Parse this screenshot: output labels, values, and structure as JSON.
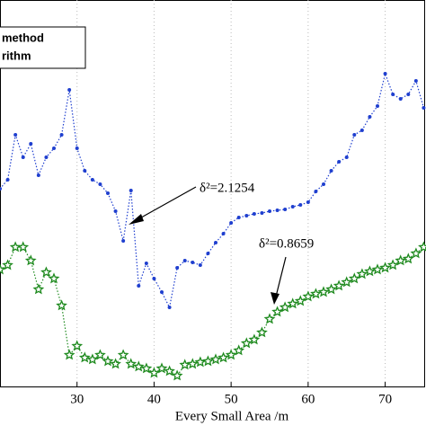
{
  "chart_data": {
    "type": "line",
    "x_label": "Every Small Area /m",
    "x": [
      20,
      21,
      22,
      23,
      24,
      25,
      26,
      27,
      28,
      29,
      30,
      31,
      32,
      33,
      34,
      35,
      36,
      37,
      38,
      39,
      40,
      41,
      42,
      43,
      44,
      45,
      46,
      47,
      48,
      49,
      50,
      51,
      52,
      53,
      54,
      55,
      56,
      57,
      58,
      59,
      60,
      61,
      62,
      63,
      64,
      65,
      66,
      67,
      68,
      69,
      70,
      71,
      72,
      73,
      74,
      75
    ],
    "series": [
      {
        "name": "method",
        "color": "#1f3fcf",
        "marker": "dot",
        "values": [
          22.0,
          23.0,
          28.0,
          25.5,
          27.0,
          23.5,
          25.5,
          26.5,
          28.0,
          33.0,
          26.5,
          24.0,
          23.0,
          22.5,
          21.5,
          19.5,
          16.2,
          21.8,
          11.2,
          13.7,
          12.0,
          10.5,
          8.8,
          13.2,
          14.0,
          13.8,
          13.5,
          14.8,
          16.0,
          17.0,
          18.2,
          18.8,
          19.0,
          19.2,
          19.3,
          19.5,
          19.6,
          19.7,
          20.0,
          20.2,
          20.5,
          21.7,
          22.5,
          24.0,
          25.0,
          25.5,
          28.0,
          28.5,
          30.0,
          31.2,
          34.8,
          32.5,
          32.0,
          32.5,
          34.0,
          31.0
        ]
      },
      {
        "name": "rithm",
        "color": "#1e8a1e",
        "marker": "star",
        "values": [
          13.0,
          13.5,
          15.5,
          15.5,
          14.0,
          10.8,
          12.7,
          12.0,
          9.0,
          3.5,
          4.5,
          3.2,
          3.0,
          3.5,
          2.8,
          2.5,
          3.5,
          2.5,
          2.2,
          2.0,
          1.5,
          2.0,
          1.7,
          1.2,
          2.4,
          2.5,
          2.7,
          2.8,
          3.0,
          3.2,
          3.5,
          4.0,
          4.8,
          5.2,
          6.0,
          7.5,
          8.3,
          8.8,
          9.2,
          9.5,
          10.0,
          10.3,
          10.5,
          10.8,
          11.2,
          11.6,
          12.0,
          12.5,
          12.8,
          13.0,
          13.2,
          13.5,
          14.0,
          14.2,
          14.8,
          15.5
        ]
      }
    ],
    "xlim": [
      20,
      75.3
    ],
    "xticks": [
      30,
      40,
      50,
      60,
      70
    ],
    "ylim": [
      0,
      43
    ],
    "grid": true,
    "legend": "top-left",
    "annotations": [
      "δ²=2.1254",
      "δ²=0.8659"
    ]
  }
}
